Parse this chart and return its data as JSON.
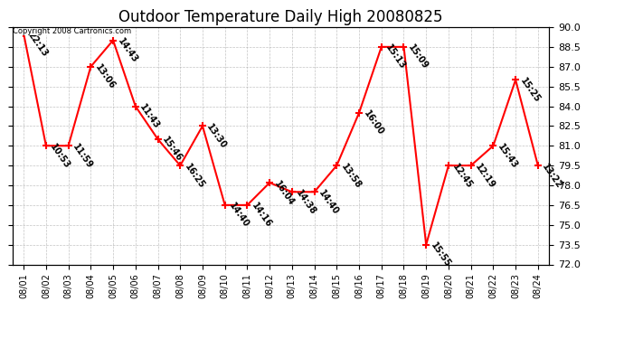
{
  "title": "Outdoor Temperature Daily High 20080825",
  "copyright": "Copyright 2008 Cartronics.com",
  "dates": [
    "08/01",
    "08/02",
    "08/03",
    "08/04",
    "08/05",
    "08/06",
    "08/07",
    "08/08",
    "08/09",
    "08/10",
    "08/11",
    "08/12",
    "08/13",
    "08/14",
    "08/15",
    "08/16",
    "08/17",
    "08/18",
    "08/19",
    "08/20",
    "08/21",
    "08/22",
    "08/23",
    "08/24"
  ],
  "temps": [
    89.5,
    81.0,
    81.0,
    87.0,
    89.0,
    84.0,
    81.5,
    79.5,
    82.5,
    76.5,
    76.5,
    78.2,
    77.5,
    77.5,
    79.5,
    83.5,
    88.5,
    88.5,
    73.5,
    79.5,
    79.5,
    81.0,
    86.0,
    79.5
  ],
  "labels": [
    "22:13",
    "10:53",
    "11:59",
    "13:06",
    "14:43",
    "11:43",
    "15:46",
    "16:25",
    "13:30",
    "14:40",
    "14:16",
    "16:04",
    "14:38",
    "14:40",
    "13:58",
    "16:00",
    "15:13",
    "15:09",
    "15:55",
    "12:45",
    "12:19",
    "15:43",
    "15:25",
    "13:22"
  ],
  "ylim": [
    72.0,
    90.0
  ],
  "yticks": [
    72.0,
    73.5,
    75.0,
    76.5,
    78.0,
    79.5,
    81.0,
    82.5,
    84.0,
    85.5,
    87.0,
    88.5,
    90.0
  ],
  "line_color": "red",
  "marker_color": "red",
  "bg_color": "#ffffff",
  "plot_bg": "#ffffff",
  "title_fontsize": 12,
  "label_fontsize": 7,
  "grid_color": "#aaaaaa",
  "tick_fontsize": 8,
  "xlabel_fontsize": 7
}
